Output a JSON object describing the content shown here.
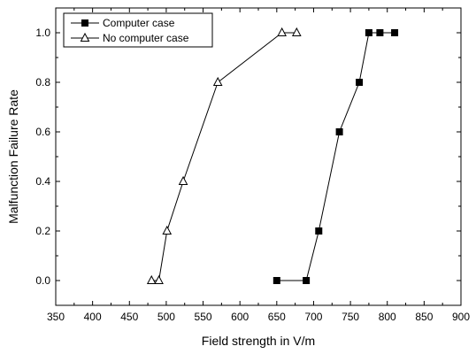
{
  "chart_data": {
    "type": "scatter",
    "xlabel": "Field strength in V/m",
    "ylabel": "Malfunction Failure Rate",
    "xlim": [
      350,
      900
    ],
    "ylim": [
      -0.1,
      1.1
    ],
    "xticks": [
      350,
      400,
      450,
      500,
      550,
      600,
      650,
      700,
      750,
      800,
      850,
      900
    ],
    "yticks": [
      0.0,
      0.2,
      0.4,
      0.6,
      0.8,
      1.0
    ],
    "xtick_labels": [
      "350",
      "400",
      "450",
      "500",
      "550",
      "600",
      "650",
      "700",
      "750",
      "800",
      "850",
      "900"
    ],
    "ytick_labels": [
      "0.0",
      "0.2",
      "0.4",
      "0.6",
      "0.8",
      "1.0"
    ],
    "grid": false,
    "legend_position": "top-left",
    "series": [
      {
        "name": "Computer case",
        "marker": "filled-square",
        "x": [
          650,
          690,
          707,
          735,
          762,
          775,
          790,
          810
        ],
        "y": [
          0.0,
          0.0,
          0.2,
          0.6,
          0.8,
          1.0,
          1.0,
          1.0
        ]
      },
      {
        "name": "No computer case",
        "marker": "open-triangle",
        "x": [
          480,
          490,
          501,
          523,
          570,
          657,
          677
        ],
        "y": [
          0.0,
          0.0,
          0.2,
          0.4,
          0.8,
          1.0,
          1.0
        ]
      }
    ]
  }
}
